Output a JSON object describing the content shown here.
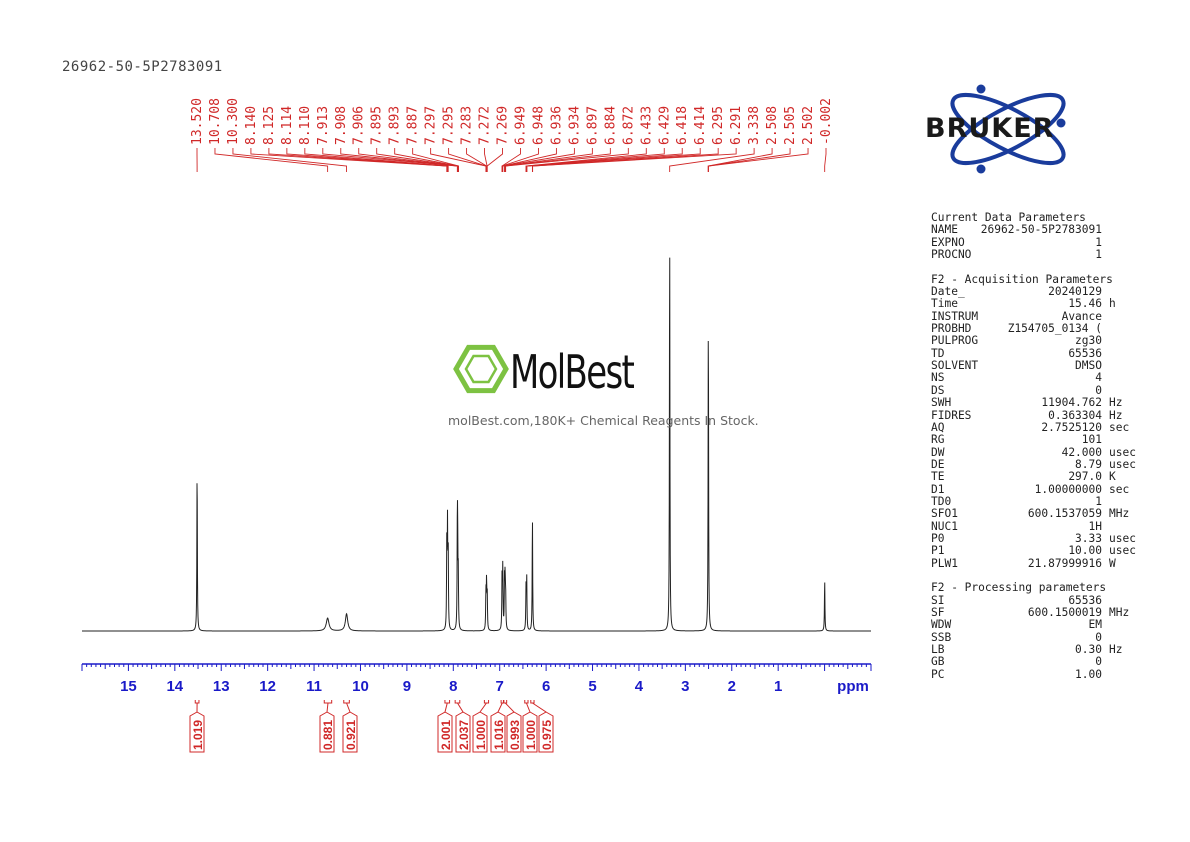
{
  "sample_name": "26962-50-5P2783091",
  "watermark": {
    "brand": "MolBest",
    "tagline": "molBest.com,180K+ Chemical Reagents In Stock."
  },
  "logo": {
    "text": "BRUKER"
  },
  "colors": {
    "peak_labels": "#d02828",
    "axis": "#1a1ac8",
    "trace": "#222222",
    "watermark_ring": "#7dc242"
  },
  "chart_data": {
    "type": "line",
    "title": "",
    "xlabel": "ppm",
    "ylabel": "",
    "x_reversed": true,
    "xlim": [
      16.0,
      -1.0
    ],
    "x_ticks": [
      "15",
      "14",
      "13",
      "12",
      "11",
      "10",
      "9",
      "8",
      "7",
      "6",
      "5",
      "4",
      "3",
      "2",
      "1"
    ],
    "peak_labels": [
      "13.520",
      "10.708",
      "10.300",
      "8.140",
      "8.125",
      "8.114",
      "8.110",
      "7.913",
      "7.908",
      "7.906",
      "7.895",
      "7.893",
      "7.887",
      "7.297",
      "7.295",
      "7.283",
      "7.272",
      "7.269",
      "6.949",
      "6.948",
      "6.936",
      "6.934",
      "6.897",
      "6.884",
      "6.872",
      "6.433",
      "6.429",
      "6.418",
      "6.414",
      "6.295",
      "6.291",
      "3.338",
      "2.508",
      "2.505",
      "2.502",
      "-0.002"
    ],
    "peaks": [
      {
        "ppm": 13.52,
        "height": 0.39
      },
      {
        "ppm": 10.708,
        "height": 0.03,
        "width": 0.035
      },
      {
        "ppm": 10.3,
        "height": 0.04,
        "width": 0.03
      },
      {
        "ppm": 8.14,
        "height": 0.2
      },
      {
        "ppm": 8.125,
        "height": 0.23
      },
      {
        "ppm": 8.11,
        "height": 0.18
      },
      {
        "ppm": 7.913,
        "height": 0.22
      },
      {
        "ppm": 7.906,
        "height": 0.17
      },
      {
        "ppm": 7.893,
        "height": 0.12
      },
      {
        "ppm": 7.297,
        "height": 0.09
      },
      {
        "ppm": 7.283,
        "height": 0.11
      },
      {
        "ppm": 7.269,
        "height": 0.08
      },
      {
        "ppm": 6.949,
        "height": 0.13
      },
      {
        "ppm": 6.934,
        "height": 0.14
      },
      {
        "ppm": 6.897,
        "height": 0.11
      },
      {
        "ppm": 6.884,
        "height": 0.12
      },
      {
        "ppm": 6.872,
        "height": 0.08
      },
      {
        "ppm": 6.433,
        "height": 0.1
      },
      {
        "ppm": 6.418,
        "height": 0.12
      },
      {
        "ppm": 6.295,
        "height": 0.27
      },
      {
        "ppm": 3.338,
        "height": 0.95
      },
      {
        "ppm": 2.505,
        "height": 0.66
      },
      {
        "ppm": 2.502,
        "height": 0.1
      },
      {
        "ppm": -0.002,
        "height": 0.12
      }
    ],
    "integrals": [
      {
        "from": 13.56,
        "to": 13.48,
        "value": "1.019"
      },
      {
        "from": 10.78,
        "to": 10.62,
        "value": "0.881"
      },
      {
        "from": 10.36,
        "to": 10.24,
        "value": "0.921"
      },
      {
        "from": 8.18,
        "to": 8.08,
        "value": "2.001"
      },
      {
        "from": 7.96,
        "to": 7.86,
        "value": "2.037"
      },
      {
        "from": 7.33,
        "to": 7.24,
        "value": "1.000"
      },
      {
        "from": 6.97,
        "to": 6.92,
        "value": "1.016"
      },
      {
        "from": 6.91,
        "to": 6.85,
        "value": "0.993"
      },
      {
        "from": 6.46,
        "to": 6.39,
        "value": "1.000"
      },
      {
        "from": 6.33,
        "to": 6.26,
        "value": "0.975"
      }
    ]
  },
  "parameters": {
    "current": {
      "title": "Current Data Parameters",
      "rows": [
        {
          "key": "NAME",
          "value": "26962-50-5P2783091",
          "unit": ""
        },
        {
          "key": "EXPNO",
          "value": "1",
          "unit": ""
        },
        {
          "key": "PROCNO",
          "value": "1",
          "unit": ""
        }
      ]
    },
    "acquisition": {
      "title": "F2 - Acquisition Parameters",
      "rows": [
        {
          "key": "Date_",
          "value": "20240129",
          "unit": ""
        },
        {
          "key": "Time",
          "value": "15.46",
          "unit": "h"
        },
        {
          "key": "INSTRUM",
          "value": "Avance",
          "unit": ""
        },
        {
          "key": "PROBHD",
          "value": "Z154705_0134 (",
          "unit": ""
        },
        {
          "key": "PULPROG",
          "value": "zg30",
          "unit": ""
        },
        {
          "key": "TD",
          "value": "65536",
          "unit": ""
        },
        {
          "key": "SOLVENT",
          "value": "DMSO",
          "unit": ""
        },
        {
          "key": "NS",
          "value": "4",
          "unit": ""
        },
        {
          "key": "DS",
          "value": "0",
          "unit": ""
        },
        {
          "key": "SWH",
          "value": "11904.762",
          "unit": "Hz"
        },
        {
          "key": "FIDRES",
          "value": "0.363304",
          "unit": "Hz"
        },
        {
          "key": "AQ",
          "value": "2.7525120",
          "unit": "sec"
        },
        {
          "key": "RG",
          "value": "101",
          "unit": ""
        },
        {
          "key": "DW",
          "value": "42.000",
          "unit": "usec"
        },
        {
          "key": "DE",
          "value": "8.79",
          "unit": "usec"
        },
        {
          "key": "TE",
          "value": "297.0",
          "unit": "K"
        },
        {
          "key": "D1",
          "value": "1.00000000",
          "unit": "sec"
        },
        {
          "key": "TD0",
          "value": "1",
          "unit": ""
        },
        {
          "key": "SFO1",
          "value": "600.1537059",
          "unit": "MHz"
        },
        {
          "key": "NUC1",
          "value": "1H",
          "unit": ""
        },
        {
          "key": "P0",
          "value": "3.33",
          "unit": "usec"
        },
        {
          "key": "P1",
          "value": "10.00",
          "unit": "usec"
        },
        {
          "key": "PLW1",
          "value": "21.87999916",
          "unit": "W"
        }
      ]
    },
    "processing": {
      "title": "F2 - Processing parameters",
      "rows": [
        {
          "key": "SI",
          "value": "65536",
          "unit": ""
        },
        {
          "key": "SF",
          "value": "600.1500019",
          "unit": "MHz"
        },
        {
          "key": "WDW",
          "value": "EM",
          "unit": ""
        },
        {
          "key": "SSB",
          "value": "0",
          "unit": ""
        },
        {
          "key": "LB",
          "value": "0.30",
          "unit": "Hz"
        },
        {
          "key": "GB",
          "value": "0",
          "unit": ""
        },
        {
          "key": "PC",
          "value": "1.00",
          "unit": ""
        }
      ]
    }
  }
}
